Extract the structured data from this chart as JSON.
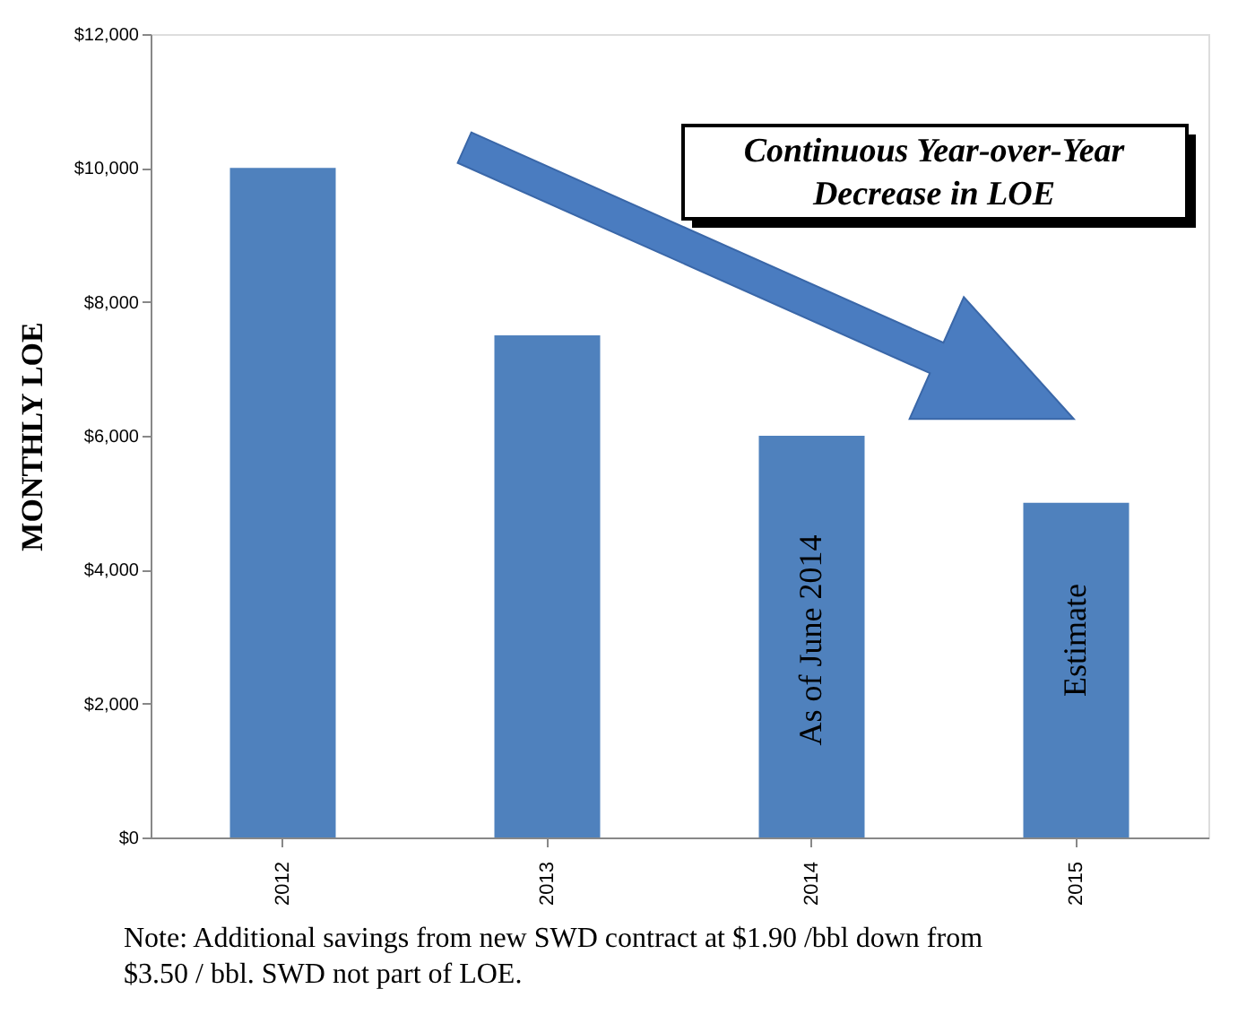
{
  "chart_data": {
    "type": "bar",
    "title": "Continuous Year-over-Year\nDecrease in LOE",
    "ylabel": "MONTHLY LOE",
    "categories": [
      "2012",
      "2013",
      "2014",
      "2015"
    ],
    "values": [
      10000,
      7500,
      6000,
      5000
    ],
    "color": "#4f81bd",
    "ylim": [
      0,
      12000
    ],
    "yticks": [
      {
        "value": 0,
        "label": "$0"
      },
      {
        "value": 2000,
        "label": "$2,000"
      },
      {
        "value": 4000,
        "label": "$4,000"
      },
      {
        "value": 6000,
        "label": "$6,000"
      },
      {
        "value": 8000,
        "label": "$8,000"
      },
      {
        "value": 10000,
        "label": "$10,000"
      },
      {
        "value": 12000,
        "label": "$12,000"
      }
    ],
    "grid": false,
    "annotations": [
      "As of June 2014",
      "Estimate",
      "Note: Additional savings from new SWD contract at $1.90 /bbl down from\n$3.50 / bbl.  SWD not part of LOE."
    ]
  }
}
